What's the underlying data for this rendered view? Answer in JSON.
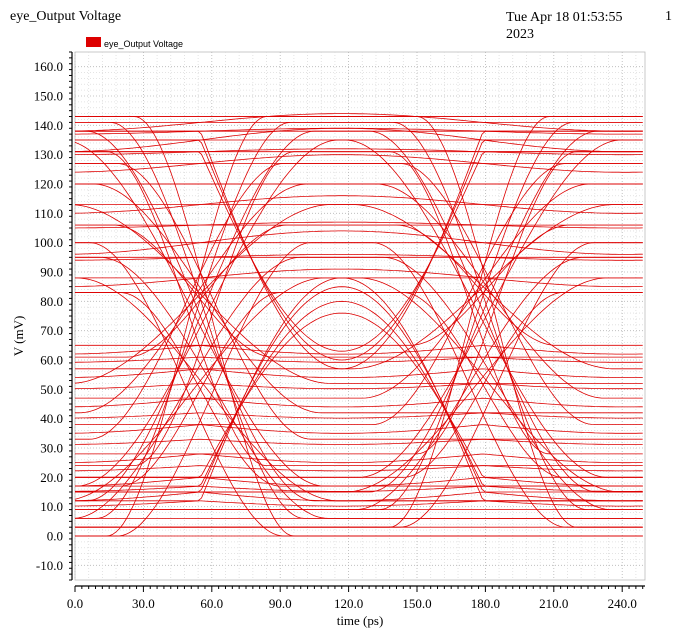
{
  "header": {
    "title": "eye_Output Voltage",
    "date_line1": "Tue Apr 18 01:53:55",
    "date_line2": "2023",
    "page_number": "1"
  },
  "chart_data": {
    "type": "line",
    "title": "eye_Output Voltage",
    "xlabel": "time (ps)",
    "ylabel": "V (mV)",
    "xlim": [
      0,
      250
    ],
    "ylim": [
      -15,
      165
    ],
    "x_ticks": [
      0,
      30,
      60,
      90,
      120,
      150,
      180,
      210,
      240
    ],
    "x_tick_labels": [
      "0.0",
      "30.0",
      "60.0",
      "90.0",
      "120.0",
      "150.0",
      "180.0",
      "210.0",
      "240.0"
    ],
    "y_ticks": [
      -10,
      0,
      10,
      20,
      30,
      40,
      50,
      60,
      70,
      80,
      90,
      100,
      110,
      120,
      130,
      140,
      150,
      160
    ],
    "y_tick_labels": [
      "-10.0",
      "0.0",
      "10.0",
      "20.0",
      "30.0",
      "40.0",
      "50.0",
      "60.0",
      "70.0",
      "80.0",
      "90.0",
      "100.0",
      "110.0",
      "120.0",
      "130.0",
      "140.0",
      "150.0",
      "160.0"
    ],
    "grid": true,
    "legend": [
      {
        "name": "eye_Output Voltage",
        "color": "#dd0000"
      }
    ],
    "legend_position": "top-left",
    "series_color": "#dd0000",
    "eye": {
      "unit_interval_ps": 124,
      "first_crossing_ps": 55,
      "second_crossing_ps": 179,
      "crossing_level_mV": 72,
      "high_levels_mV": [
        143,
        141,
        138,
        135,
        131,
        127,
        120,
        113,
        106,
        100,
        95,
        88,
        83
      ],
      "low_levels_mV": [
        0,
        3,
        6,
        9,
        12,
        15,
        17,
        20,
        24,
        28,
        33,
        38,
        42,
        47,
        52,
        57,
        61,
        65
      ],
      "eye_open_top_mV": 89,
      "eye_open_bottom_mV": 57
    }
  }
}
